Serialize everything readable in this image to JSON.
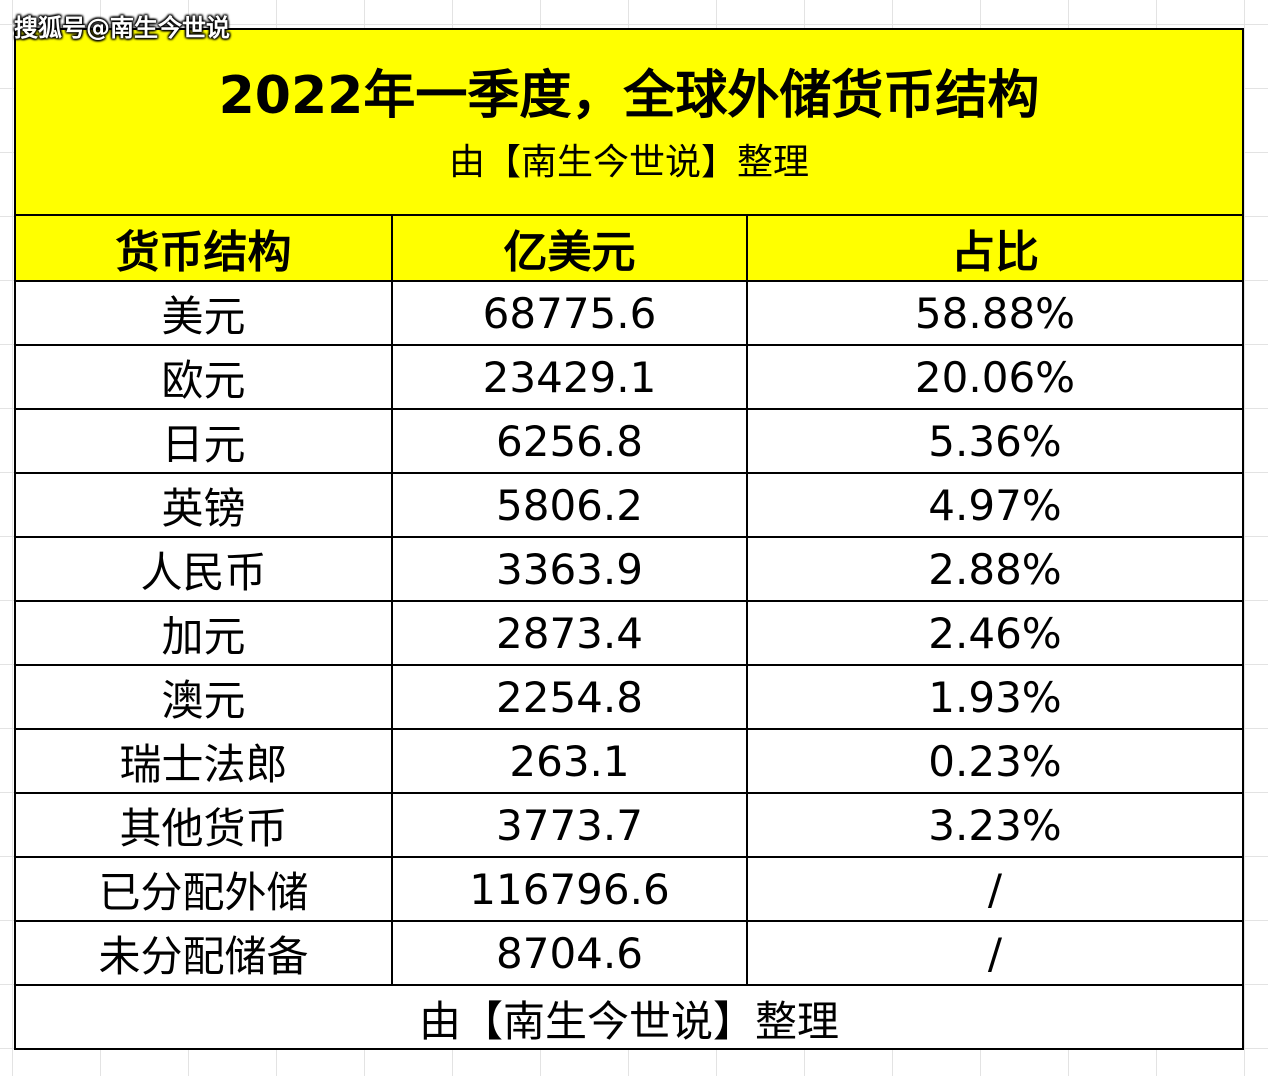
{
  "watermark": "搜狐号@南生今世说",
  "title": "2022年一季度，全球外储货币结构",
  "subtitle": "由【南生今世说】整理",
  "headers": {
    "currency": "货币结构",
    "amount": "亿美元",
    "share": "占比"
  },
  "rows": [
    {
      "currency": "美元",
      "amount": "68775.6",
      "share": "58.88%"
    },
    {
      "currency": "欧元",
      "amount": "23429.1",
      "share": "20.06%"
    },
    {
      "currency": "日元",
      "amount": "6256.8",
      "share": "5.36%"
    },
    {
      "currency": "英镑",
      "amount": "5806.2",
      "share": "4.97%"
    },
    {
      "currency": "人民币",
      "amount": "3363.9",
      "share": "2.88%"
    },
    {
      "currency": "加元",
      "amount": "2873.4",
      "share": "2.46%"
    },
    {
      "currency": "澳元",
      "amount": "2254.8",
      "share": "1.93%"
    },
    {
      "currency": "瑞士法郎",
      "amount": "263.1",
      "share": "0.23%"
    },
    {
      "currency": "其他货币",
      "amount": "3773.7",
      "share": "3.23%"
    },
    {
      "currency": "已分配外储",
      "amount": "116796.6",
      "share": "/"
    },
    {
      "currency": "未分配储备",
      "amount": "8704.6",
      "share": "/"
    }
  ],
  "footer": "由【南生今世说】整理",
  "colors": {
    "highlight": "#ffff00",
    "border": "#000000"
  }
}
